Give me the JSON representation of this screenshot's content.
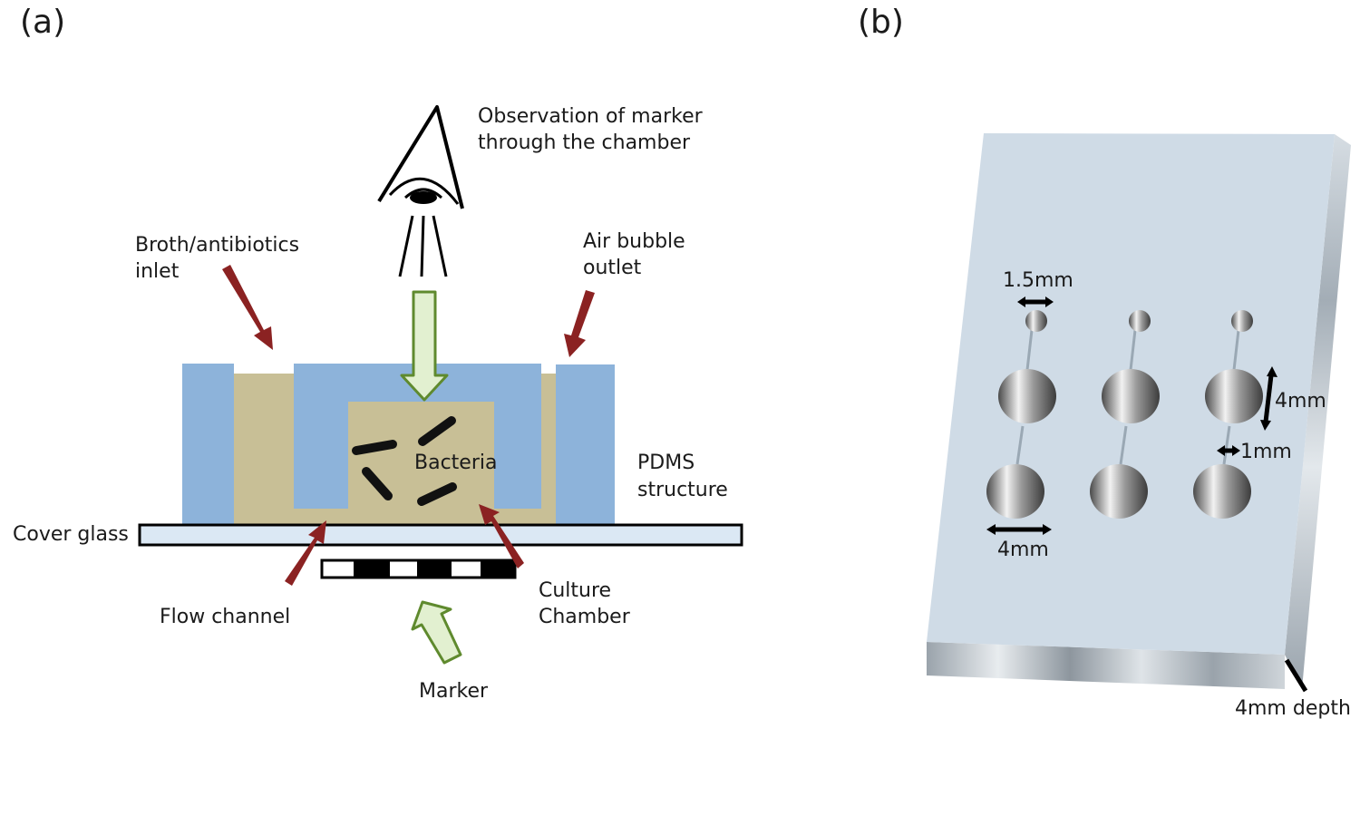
{
  "panels": {
    "a": "(a)",
    "b": "(b)"
  },
  "panel_a": {
    "observation": [
      "Observation of marker",
      "through the chamber"
    ],
    "inlet": [
      "Broth/antibiotics",
      "inlet"
    ],
    "outlet": [
      "Air bubble",
      "outlet"
    ],
    "bacteria": "Bacteria",
    "pdms": [
      "PDMS",
      "structure"
    ],
    "cover_glass": "Cover glass",
    "flow_channel": "Flow channel",
    "culture_chamber": [
      "Culture",
      "Chamber"
    ],
    "marker": "Marker"
  },
  "panel_b": {
    "dim_inlet": "1.5mm",
    "dim_chamber_height": "4mm",
    "dim_channel": "1mm",
    "dim_chamber_width": "4mm",
    "dim_depth": "4mm depth"
  },
  "colors": {
    "pdms": "#8db3da",
    "broth": "#c8bf96",
    "glass": "#dbe8f4",
    "red_arrow": "#8b2222",
    "green_arrow": "#e2f0d0",
    "green_stroke": "#5f8a2e",
    "block": "#cfdbe6"
  }
}
